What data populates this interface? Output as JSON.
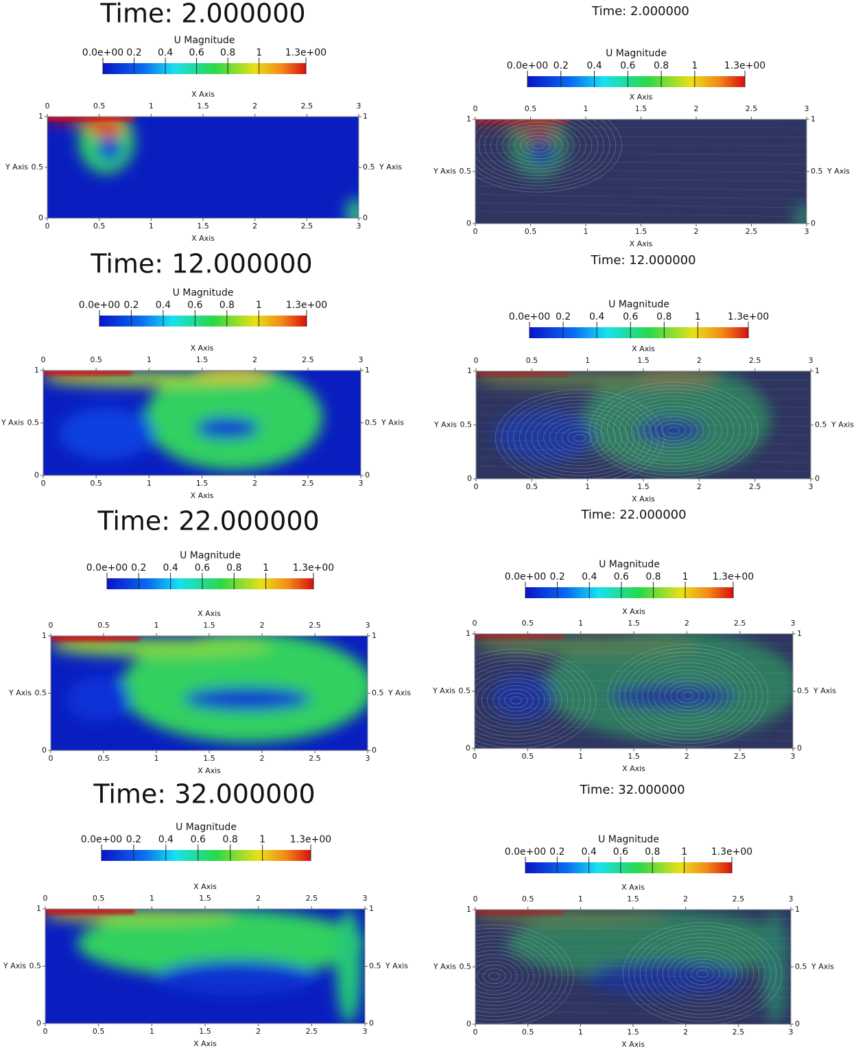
{
  "panels": [
    {
      "title": "Time: 2.000000"
    },
    {
      "title": "Time: 12.000000"
    },
    {
      "title": "Time: 22.000000"
    },
    {
      "title": "Time: 32.000000"
    },
    {
      "title": "Time: 2.000000"
    },
    {
      "title": "Time: 12.000000"
    },
    {
      "title": "Time: 22.000000"
    },
    {
      "title": "Time: 32.000000"
    }
  ],
  "colorbar": {
    "label": "U Magnitude",
    "range": [
      0,
      1.3
    ],
    "ticks": [
      {
        "value": 0,
        "label": "0.0e+00"
      },
      0.2,
      0.4,
      0.6,
      0.8,
      1,
      {
        "value": 1.3,
        "label": "1.3e+00"
      }
    ]
  },
  "x_axis": {
    "label": "X Axis",
    "range": [
      0,
      3
    ],
    "ticks": [
      0,
      0.5,
      1,
      1.5,
      2,
      2.5,
      3
    ]
  },
  "y_axis": {
    "label": "Y Axis",
    "range": [
      0,
      1
    ],
    "ticks": [
      0,
      0.5,
      1
    ]
  }
}
